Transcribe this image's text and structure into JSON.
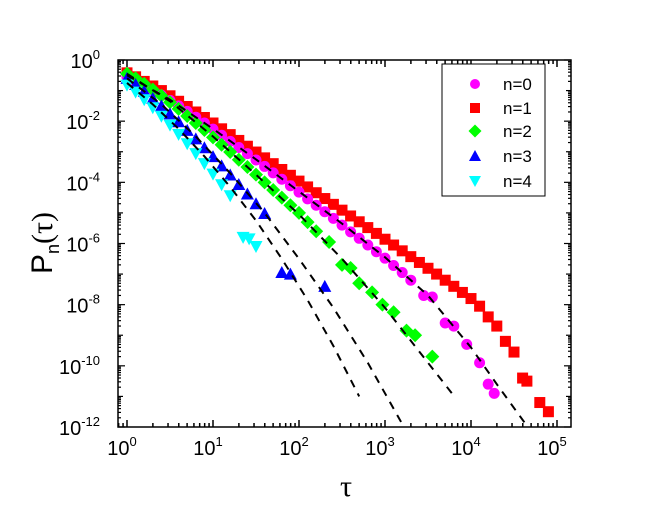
{
  "chart_data": {
    "type": "scatter",
    "title": "",
    "xlabel": "τ",
    "ylabel": "P_n(τ)",
    "xscale": "log",
    "yscale": "log",
    "xlim": [
      0.8,
      120000
    ],
    "ylim": [
      1e-12,
      1
    ],
    "xticks": [
      "10^0",
      "10^1",
      "10^2",
      "10^3",
      "10^4",
      "10^5"
    ],
    "yticks": [
      "10^0",
      "10^-2",
      "10^-4",
      "10^-6",
      "10^-8",
      "10^-10",
      "10^-12"
    ],
    "grid": false,
    "legend_position": "upper right",
    "series": [
      {
        "name": "n=0",
        "marker": "circle",
        "color": "#FF00FF",
        "log10_x": [
          0.0,
          0.1,
          0.2,
          0.3,
          0.4,
          0.5,
          0.6,
          0.7,
          0.8,
          0.9,
          1.0,
          1.1,
          1.2,
          1.3,
          1.4,
          1.5,
          1.6,
          1.7,
          1.8,
          1.9,
          2.0,
          2.1,
          2.2,
          2.3,
          2.4,
          2.5,
          2.6,
          2.7,
          2.8,
          2.9,
          3.0,
          3.1,
          3.2,
          3.3,
          3.45,
          3.55,
          3.7,
          3.8,
          3.95,
          4.1,
          4.2,
          4.27
        ],
        "log10_y": [
          -0.55,
          -0.7,
          -0.85,
          -1.0,
          -1.15,
          -1.32,
          -1.5,
          -1.68,
          -1.87,
          -2.06,
          -2.26,
          -2.46,
          -2.66,
          -2.86,
          -3.06,
          -3.27,
          -3.48,
          -3.69,
          -3.9,
          -4.11,
          -4.32,
          -4.54,
          -4.75,
          -4.96,
          -5.18,
          -5.4,
          -5.62,
          -5.83,
          -6.05,
          -6.27,
          -6.48,
          -6.72,
          -6.95,
          -7.2,
          -7.7,
          -7.75,
          -8.6,
          -8.7,
          -9.3,
          -9.9,
          -10.6,
          -10.9
        ]
      },
      {
        "name": "n=1",
        "marker": "square",
        "color": "#FF0000",
        "log10_x": [
          0.0,
          0.1,
          0.2,
          0.3,
          0.4,
          0.5,
          0.6,
          0.7,
          0.8,
          0.9,
          1.0,
          1.1,
          1.2,
          1.3,
          1.4,
          1.5,
          1.6,
          1.7,
          1.8,
          1.9,
          2.0,
          2.1,
          2.2,
          2.3,
          2.4,
          2.5,
          2.6,
          2.7,
          2.8,
          2.9,
          3.0,
          3.1,
          3.2,
          3.3,
          3.4,
          3.5,
          3.6,
          3.7,
          3.8,
          3.9,
          4.0,
          4.1,
          4.2,
          4.3,
          4.4,
          4.5,
          4.6,
          4.65,
          4.8,
          4.9
        ],
        "log10_y": [
          -0.42,
          -0.55,
          -0.7,
          -0.85,
          -1.0,
          -1.17,
          -1.35,
          -1.52,
          -1.7,
          -1.88,
          -2.06,
          -2.25,
          -2.44,
          -2.63,
          -2.82,
          -3.01,
          -3.2,
          -3.39,
          -3.58,
          -3.77,
          -3.96,
          -4.15,
          -4.34,
          -4.53,
          -4.72,
          -4.91,
          -5.1,
          -5.29,
          -5.48,
          -5.67,
          -5.86,
          -6.05,
          -6.24,
          -6.43,
          -6.62,
          -6.81,
          -7.0,
          -7.2,
          -7.4,
          -7.6,
          -7.8,
          -8.05,
          -8.4,
          -8.7,
          -9.2,
          -9.55,
          -10.4,
          -10.5,
          -11.2,
          -11.5
        ]
      },
      {
        "name": "n=2",
        "marker": "diamond",
        "color": "#00FF00",
        "log10_x": [
          0.0,
          0.1,
          0.2,
          0.3,
          0.4,
          0.5,
          0.6,
          0.7,
          0.8,
          0.9,
          1.0,
          1.1,
          1.2,
          1.3,
          1.4,
          1.5,
          1.6,
          1.7,
          1.8,
          1.9,
          2.0,
          2.1,
          2.2,
          2.35,
          2.5,
          2.6,
          2.7,
          2.85,
          2.97,
          3.1,
          3.25,
          3.35,
          3.55
        ],
        "log10_y": [
          -0.45,
          -0.6,
          -0.78,
          -0.97,
          -1.17,
          -1.38,
          -1.6,
          -1.83,
          -2.06,
          -2.29,
          -2.53,
          -2.77,
          -3.01,
          -3.26,
          -3.5,
          -3.75,
          -4.0,
          -4.25,
          -4.5,
          -4.75,
          -5.0,
          -5.3,
          -5.6,
          -5.95,
          -6.7,
          -6.8,
          -7.3,
          -7.6,
          -8.0,
          -8.25,
          -8.85,
          -9.0,
          -9.7
        ]
      },
      {
        "name": "n=3",
        "marker": "triangle-up",
        "color": "#0000FF",
        "log10_x": [
          0.0,
          0.1,
          0.2,
          0.3,
          0.4,
          0.5,
          0.6,
          0.7,
          0.8,
          0.9,
          1.0,
          1.1,
          1.2,
          1.3,
          1.4,
          1.5,
          1.6,
          1.8,
          1.9,
          2.3
        ],
        "log10_y": [
          -0.6,
          -0.8,
          -1.02,
          -1.26,
          -1.5,
          -1.76,
          -2.02,
          -2.3,
          -2.58,
          -2.87,
          -3.16,
          -3.46,
          -3.76,
          -4.07,
          -4.38,
          -4.7,
          -5.02,
          -6.95,
          -7.0,
          -7.4
        ]
      },
      {
        "name": "n=4",
        "marker": "triangle-down",
        "color": "#00FFFF",
        "log10_x": [
          0.0,
          0.1,
          0.2,
          0.3,
          0.4,
          0.5,
          0.6,
          0.7,
          0.8,
          0.9,
          1.0,
          1.1,
          1.2,
          1.35,
          1.42,
          1.5
        ],
        "log10_y": [
          -0.82,
          -1.05,
          -1.3,
          -1.56,
          -1.84,
          -2.13,
          -2.43,
          -2.74,
          -3.06,
          -3.39,
          -3.73,
          -4.08,
          -4.44,
          -5.8,
          -5.85,
          -6.1
        ]
      }
    ],
    "fit_lines": [
      {
        "style": "dashed",
        "color": "#000000",
        "follows": "n=4",
        "log10_x": [
          0.0,
          0.3,
          0.6,
          0.9,
          1.2,
          1.5,
          1.8,
          2.1,
          2.4,
          2.7
        ],
        "log10_y": [
          -0.75,
          -1.45,
          -2.25,
          -3.15,
          -4.15,
          -5.25,
          -6.5,
          -7.85,
          -9.35,
          -11.0
        ]
      },
      {
        "name_hint": "n=3 fit",
        "style": "dashed",
        "color": "#000000",
        "follows": "n=3",
        "log10_x": [
          0.0,
          0.4,
          0.8,
          1.2,
          1.6,
          2.0,
          2.4,
          2.8,
          3.2
        ],
        "log10_y": [
          -0.6,
          -1.45,
          -2.5,
          -3.7,
          -5.0,
          -6.5,
          -8.1,
          -9.9,
          -11.9
        ]
      },
      {
        "style": "dashed",
        "color": "#000000",
        "follows": "n=2",
        "log10_x": [
          0.0,
          0.5,
          1.0,
          1.5,
          2.0,
          2.5,
          3.0,
          3.5,
          3.82
        ],
        "log10_y": [
          -0.45,
          -1.35,
          -2.5,
          -3.75,
          -5.05,
          -6.5,
          -8.1,
          -9.9,
          -11.05
        ]
      },
      {
        "style": "dashed",
        "color": "#000000",
        "follows": "n=0",
        "log10_x": [
          0.0,
          0.5,
          1.0,
          1.5,
          2.0,
          2.5,
          3.0,
          3.5,
          4.0,
          4.3,
          4.66
        ],
        "log10_y": [
          -0.5,
          -1.3,
          -2.25,
          -3.25,
          -4.3,
          -5.35,
          -6.45,
          -7.7,
          -9.4,
          -10.6,
          -12.0
        ]
      }
    ]
  },
  "axes": {
    "x_title": "τ",
    "y_title_main": "P",
    "y_title_sub": "n",
    "y_title_arg": "(τ)",
    "x_ticks": [
      {
        "base": "10",
        "exp": "0"
      },
      {
        "base": "10",
        "exp": "1"
      },
      {
        "base": "10",
        "exp": "2"
      },
      {
        "base": "10",
        "exp": "3"
      },
      {
        "base": "10",
        "exp": "4"
      },
      {
        "base": "10",
        "exp": "5"
      }
    ],
    "y_ticks": [
      {
        "base": "10",
        "exp": "0"
      },
      {
        "base": "10",
        "exp": "-2"
      },
      {
        "base": "10",
        "exp": "-4"
      },
      {
        "base": "10",
        "exp": "-6"
      },
      {
        "base": "10",
        "exp": "-8"
      },
      {
        "base": "10",
        "exp": "-10"
      },
      {
        "base": "10",
        "exp": "-12"
      }
    ]
  },
  "legend": {
    "items": [
      {
        "label": "n=0",
        "marker": "circle",
        "color": "#FF00FF"
      },
      {
        "label": "n=1",
        "marker": "square",
        "color": "#FF0000"
      },
      {
        "label": "n=2",
        "marker": "diamond",
        "color": "#00FF00"
      },
      {
        "label": "n=3",
        "marker": "triangle-up",
        "color": "#0000FF"
      },
      {
        "label": "n=4",
        "marker": "triangle-down",
        "color": "#00FFFF"
      }
    ]
  }
}
